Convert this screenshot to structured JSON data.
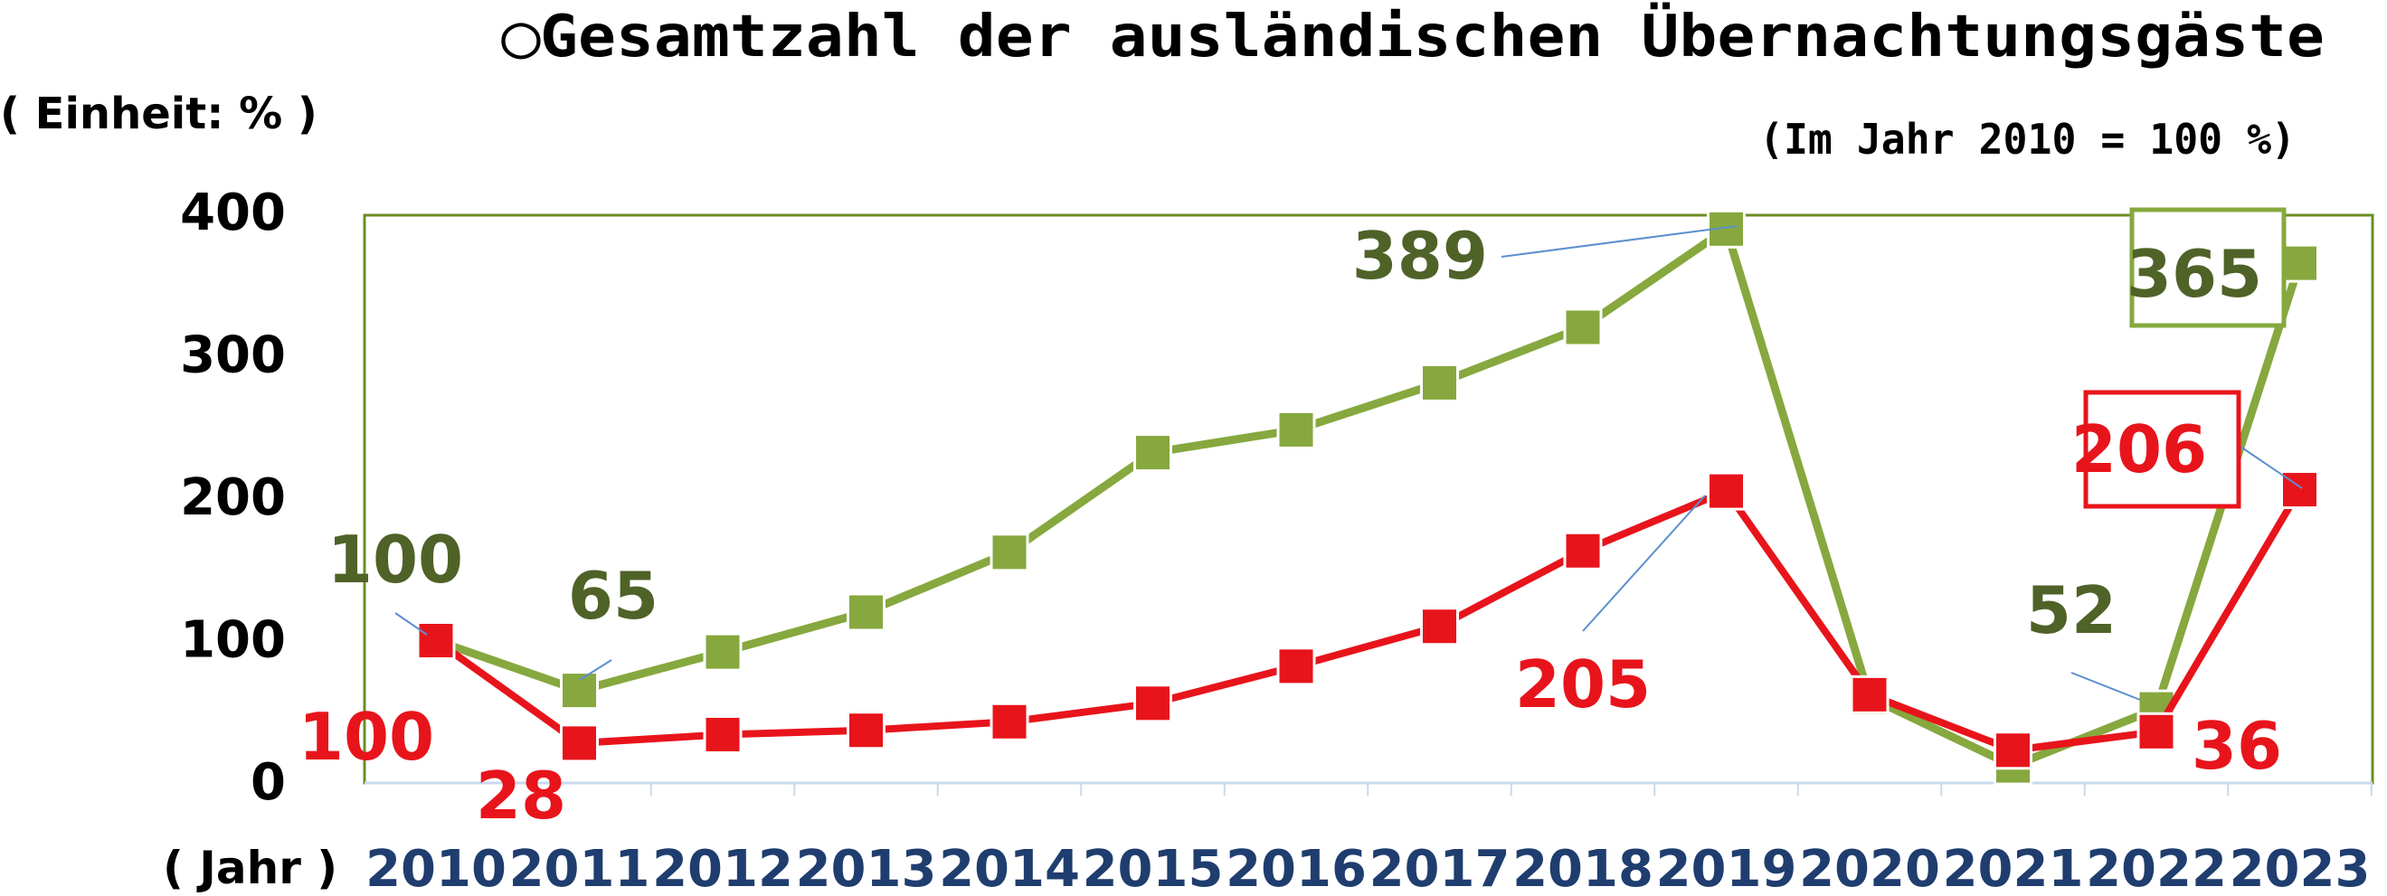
{
  "title": "◯Gesamtzahl der ausländischen Übernachtungsgäste",
  "unit_label": "( Einheit: % )",
  "base_note": "(Im Jahr 2010 = 100 %)",
  "x_axis_label": "( Jahr )",
  "colors": {
    "green": "#86A83E",
    "green_text": "#4F6228",
    "red": "#E8141B",
    "red_text": "#E8141B",
    "year_text": "#1F3D6E",
    "plot_border": "#6B8E23",
    "grid": "#C9D9EE"
  },
  "chart_data": {
    "type": "line",
    "categories": [
      "2010",
      "2011",
      "2012",
      "2013",
      "2014",
      "2015",
      "2016",
      "2017",
      "2018",
      "2019",
      "2020",
      "2021",
      "2022",
      "2023"
    ],
    "ylim": [
      0,
      400
    ],
    "yticks": [
      "0",
      "100",
      "200",
      "300",
      "400"
    ],
    "series": [
      {
        "key": "green",
        "values": [
          100,
          65,
          92,
          120,
          162,
          232,
          248,
          281,
          320,
          389,
          60,
          12,
          52,
          365
        ]
      },
      {
        "key": "red",
        "values": [
          100,
          28,
          34,
          37,
          43,
          56,
          82,
          110,
          163,
          205,
          62,
          23,
          36,
          206
        ]
      }
    ],
    "data_labels": [
      {
        "series": "green",
        "index": 0,
        "text": "100"
      },
      {
        "series": "green",
        "index": 1,
        "text": "65"
      },
      {
        "series": "green",
        "index": 9,
        "text": "389"
      },
      {
        "series": "green",
        "index": 12,
        "text": "52"
      },
      {
        "series": "green",
        "index": 13,
        "text": "365",
        "boxed": true
      },
      {
        "series": "red",
        "index": 0,
        "text": "100"
      },
      {
        "series": "red",
        "index": 1,
        "text": "28"
      },
      {
        "series": "red",
        "index": 9,
        "text": "205"
      },
      {
        "series": "red",
        "index": 12,
        "text": "36"
      },
      {
        "series": "red",
        "index": 13,
        "text": "206",
        "boxed": true
      }
    ]
  }
}
